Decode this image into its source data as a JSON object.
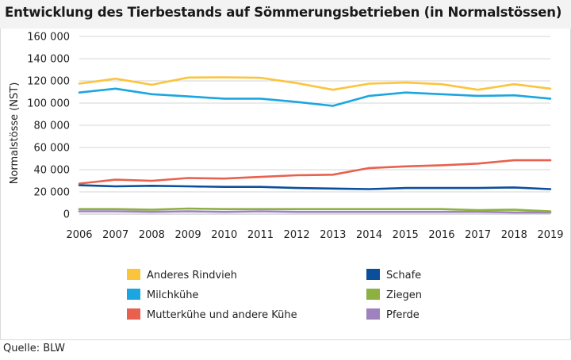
{
  "header": {
    "title": "Entwicklung des Tierbestands auf Sömmerungsbetrieben (in Normalstössen)"
  },
  "footer": {
    "source": "Quelle: BLW"
  },
  "chart_data": {
    "type": "line",
    "title": "Entwicklung des Tierbestands auf Sömmerungsbetrieben (in Normalstössen)",
    "xlabel": "",
    "ylabel": "Normalstösse (NST)",
    "ylim": [
      0,
      160000
    ],
    "yticks": [
      0,
      20000,
      40000,
      60000,
      80000,
      100000,
      120000,
      140000,
      160000
    ],
    "ytick_labels": [
      "0",
      "20 000",
      "40 000",
      "60 000",
      "80 000",
      "100 000",
      "120 000",
      "140 000",
      "160 000"
    ],
    "grid": "horizontal",
    "legend_position": "bottom",
    "categories": [
      "2006",
      "2007",
      "2008",
      "2009",
      "2010",
      "2011",
      "2012",
      "2013",
      "2014",
      "2015",
      "2016",
      "2017",
      "2018",
      "2019"
    ],
    "series": [
      {
        "name": "Anderes Rindvieh",
        "color": "#fbc43d",
        "values": [
          117500,
          122000,
          116500,
          123000,
          123200,
          122800,
          118000,
          112000,
          117500,
          118500,
          117000,
          112000,
          117000,
          113000
        ]
      },
      {
        "name": "Milchkühe",
        "color": "#1ba6e1",
        "values": [
          109500,
          113000,
          108000,
          106000,
          104000,
          104000,
          101000,
          97500,
          106500,
          109500,
          108000,
          106500,
          107000,
          104000
        ]
      },
      {
        "name": "Mutterkühe und andere Kühe",
        "color": "#e8614f",
        "values": [
          27500,
          31000,
          30000,
          32500,
          32000,
          33500,
          35000,
          35500,
          41500,
          43000,
          44000,
          45500,
          48500,
          48500
        ]
      },
      {
        "name": "Schafe",
        "color": "#0b4f9c",
        "values": [
          26000,
          25000,
          25500,
          25000,
          24500,
          24500,
          23500,
          23000,
          22500,
          23500,
          23500,
          23500,
          24000,
          22500
        ]
      },
      {
        "name": "Ziegen",
        "color": "#8db043",
        "values": [
          4500,
          4500,
          4000,
          5000,
          4500,
          4500,
          4500,
          4500,
          4500,
          4500,
          4500,
          3500,
          4000,
          2500
        ]
      },
      {
        "name": "Pferde",
        "color": "#9e82be",
        "values": [
          2500,
          2500,
          2000,
          2500,
          2000,
          2500,
          2000,
          2000,
          2000,
          2000,
          2000,
          2000,
          1500,
          1500
        ]
      }
    ]
  }
}
